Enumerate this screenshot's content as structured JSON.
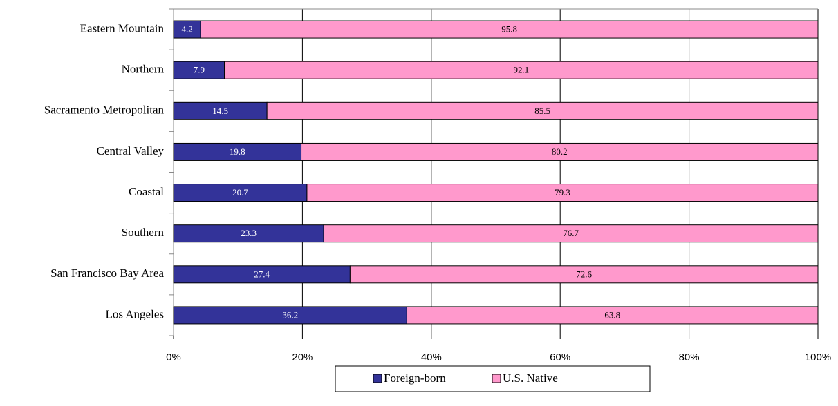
{
  "chart_data": {
    "type": "stacked_barh",
    "categories": [
      "Eastern Mountain",
      "Northern",
      "Sacramento Metropolitan",
      "Central Valley",
      "Coastal",
      "Southern",
      "San Francisco Bay Area",
      "Los Angeles"
    ],
    "series": [
      {
        "name": "Foreign-born",
        "color": "#333399",
        "label_color": "#ffffff",
        "values": [
          4.2,
          7.9,
          14.5,
          19.8,
          20.7,
          23.3,
          27.4,
          36.2
        ]
      },
      {
        "name": "U.S. Native",
        "color": "#ff99cc",
        "label_color": "#000000",
        "values": [
          95.8,
          92.1,
          85.5,
          80.2,
          79.3,
          76.7,
          72.6,
          63.8
        ]
      }
    ],
    "xlim": [
      0,
      100
    ],
    "xticks": [
      {
        "value": 0,
        "label": "0%"
      },
      {
        "value": 20,
        "label": "20%"
      },
      {
        "value": 40,
        "label": "40%"
      },
      {
        "value": 60,
        "label": "60%"
      },
      {
        "value": 80,
        "label": "80%"
      },
      {
        "value": 100,
        "label": "100%"
      }
    ],
    "grid": true,
    "legend": "bottom"
  }
}
